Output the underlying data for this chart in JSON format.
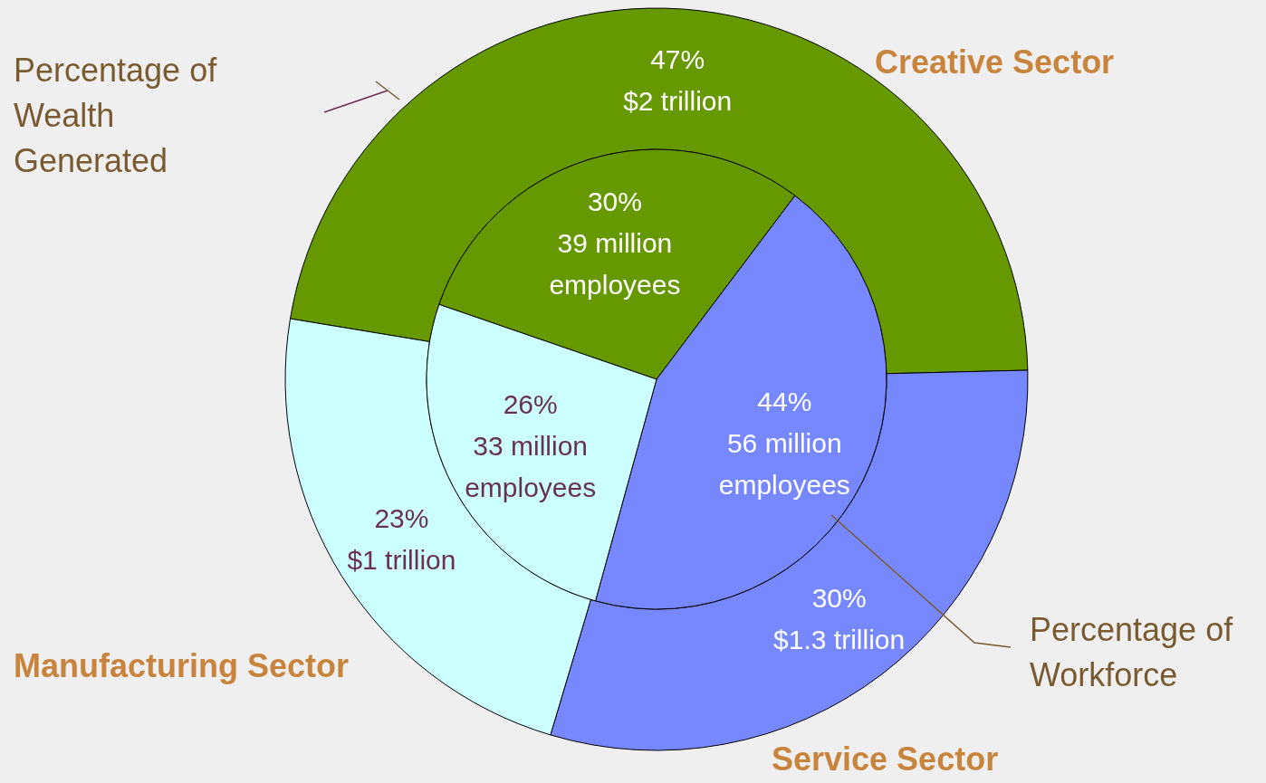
{
  "chart_data": {
    "type": "donut",
    "categories": [
      "Creative Sector",
      "Service Sector",
      "Manufacturing Sector"
    ],
    "colors": [
      "#669900",
      "#7788ff",
      "#ccffff"
    ],
    "series": [
      {
        "name": "Percentage of Wealth Generated",
        "values": [
          47,
          30,
          23
        ],
        "value_labels": [
          "47%\n$2 trillion",
          "30%\n$1.3 trillion",
          "23%\n$1 trillion"
        ]
      },
      {
        "name": "Percentage of Workforce",
        "values": [
          30,
          44,
          26
        ],
        "value_labels": [
          "30%\n39 million\nemployees",
          "44%\n56 million\nemployees",
          "26%\n33 million\nemployees"
        ]
      }
    ]
  }
}
